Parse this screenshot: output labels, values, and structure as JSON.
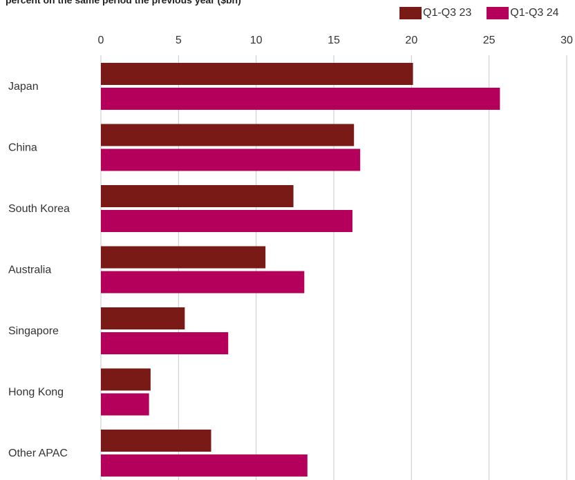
{
  "chart_data": {
    "type": "bar",
    "orientation": "horizontal",
    "subtitle": "percent on the same period the previous year ($bn)",
    "categories": [
      "Japan",
      "China",
      "South Korea",
      "Australia",
      "Singapore",
      "Hong Kong",
      "Other APAC"
    ],
    "series": [
      {
        "name": "Q1-Q3 23",
        "color": "#7a1a17",
        "values": [
          20.1,
          16.3,
          12.4,
          10.6,
          5.4,
          3.2,
          7.1
        ]
      },
      {
        "name": "Q1-Q3 24",
        "color": "#b5005b",
        "values": [
          25.7,
          16.7,
          16.2,
          13.1,
          8.2,
          3.1,
          13.3
        ]
      }
    ],
    "xlim": [
      0,
      30
    ],
    "xticks": [
      0,
      5,
      10,
      15,
      20,
      25,
      30
    ],
    "grid": true,
    "legend_position": "top-right"
  }
}
